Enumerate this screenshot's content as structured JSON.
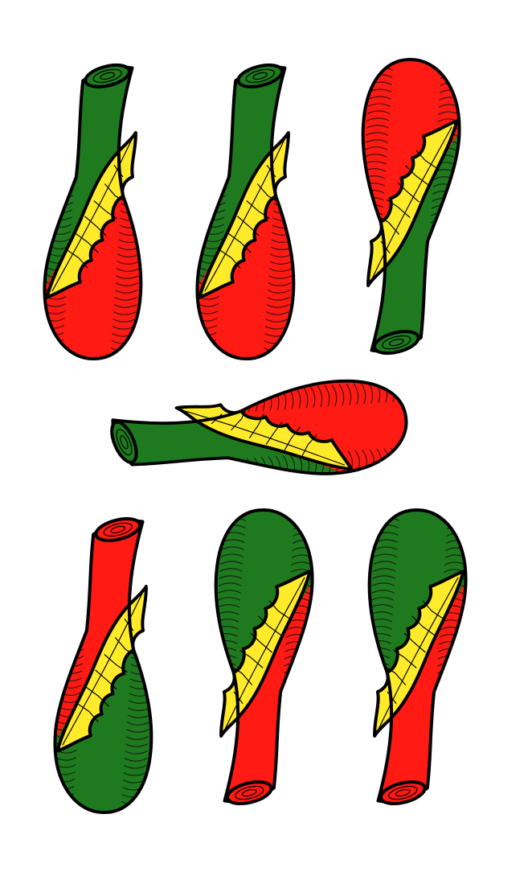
{
  "card": {
    "suit": "bastoni",
    "rank": 7,
    "colors": {
      "background": "#ffffff",
      "red": "#ff1a14",
      "green": "#1f7a1f",
      "yellow": "#ffeb2a",
      "outline": "#000000"
    },
    "clubs": [
      {
        "name": "club-top-left",
        "top_color": "green",
        "bottom_color": "red",
        "knob": "bottom"
      },
      {
        "name": "club-top-middle",
        "top_color": "green",
        "bottom_color": "red",
        "knob": "bottom"
      },
      {
        "name": "club-top-right",
        "top_color": "green",
        "bottom_color": "red",
        "knob": "top"
      },
      {
        "name": "club-center",
        "top_color": "green",
        "bottom_color": "red",
        "knob": "left"
      },
      {
        "name": "club-bottom-left",
        "top_color": "red",
        "bottom_color": "green",
        "knob": "bottom"
      },
      {
        "name": "club-bottom-middle",
        "top_color": "red",
        "bottom_color": "green",
        "knob": "top"
      },
      {
        "name": "club-bottom-right",
        "top_color": "red",
        "bottom_color": "green",
        "knob": "top"
      }
    ]
  }
}
